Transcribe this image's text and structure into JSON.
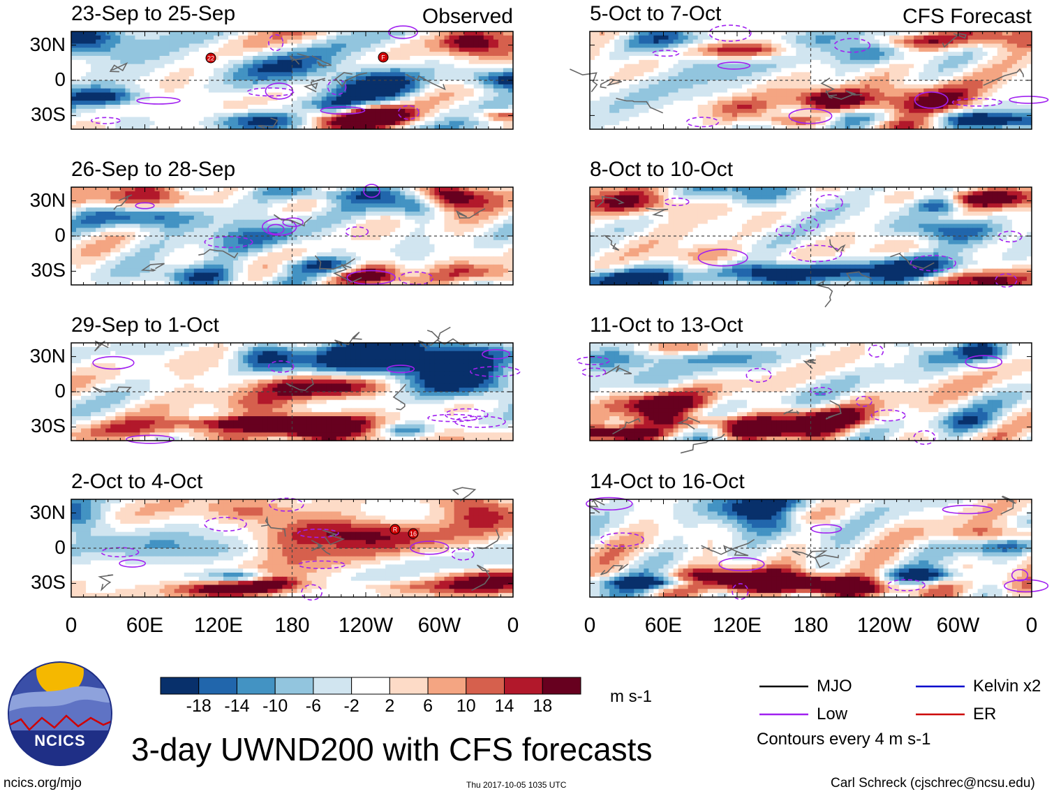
{
  "header": {
    "observed_label": "Observed",
    "forecast_label": "CFS Forecast"
  },
  "panels": [
    {
      "column": "observed",
      "title": "23-Sep to 25-Sep"
    },
    {
      "column": "observed",
      "title": "26-Sep to 28-Sep"
    },
    {
      "column": "observed",
      "title": "29-Sep to 1-Oct"
    },
    {
      "column": "observed",
      "title": "2-Oct to 4-Oct"
    },
    {
      "column": "forecast",
      "title": "5-Oct to 7-Oct"
    },
    {
      "column": "forecast",
      "title": "8-Oct to 10-Oct"
    },
    {
      "column": "forecast",
      "title": "11-Oct to 13-Oct"
    },
    {
      "column": "forecast",
      "title": "14-Oct to 16-Oct"
    }
  ],
  "axes": {
    "lat_labels": [
      "30N",
      "0",
      "30S"
    ],
    "lon_labels": [
      "0",
      "60E",
      "120E",
      "180",
      "120W",
      "60W",
      "0"
    ]
  },
  "colorbar": {
    "colors": [
      "#08306b",
      "#2166ac",
      "#4393c3",
      "#92c5de",
      "#d1e5f0",
      "#ffffff",
      "#fddbc7",
      "#f4a582",
      "#d6604d",
      "#b2182b",
      "#67001f"
    ],
    "tick_labels": [
      "-18",
      "-14",
      "-10",
      "-6",
      "-2",
      "2",
      "6",
      "10",
      "14",
      "18"
    ],
    "units": "m s-1"
  },
  "legend": {
    "items": [
      {
        "label": "MJO",
        "color": "#000000"
      },
      {
        "label": "Kelvin x2",
        "color": "#0000cc"
      },
      {
        "label": "Low",
        "color": "#a020f0"
      },
      {
        "label": "ER",
        "color": "#cc0000"
      }
    ],
    "contour_note": "Contours every 4 m s-1"
  },
  "logo": {
    "text": "NCICS"
  },
  "footer": {
    "title": "3-day UWND200 with CFS forecasts",
    "left": "ncics.org/mjo",
    "center": "Thu 2017-10-05 1035 UTC",
    "right": "Carl Schreck (cjschrec@ncsu.edu)"
  },
  "storm_markers": [
    {
      "panel": 0,
      "label": "22"
    },
    {
      "panel": 0,
      "label": "F"
    },
    {
      "panel": 3,
      "label": "R"
    },
    {
      "panel": 3,
      "label": "16"
    }
  ],
  "chart_data": {
    "type": "heatmap",
    "variable": "200-hPa zonal wind anomaly (3-day mean)",
    "title": "3-day UWND200 with CFS forecasts",
    "units": "m s-1",
    "x": [
      "0",
      "60E",
      "120E",
      "180",
      "120W",
      "60W",
      "0"
    ],
    "y": [
      "30N",
      "0",
      "30S"
    ],
    "color_levels": [
      -18,
      -14,
      -10,
      -6,
      -2,
      2,
      6,
      10,
      14,
      18
    ],
    "contour_interval": 4,
    "panels": [
      {
        "title": "23-Sep to 25-Sep",
        "source": "Observed"
      },
      {
        "title": "26-Sep to 28-Sep",
        "source": "Observed"
      },
      {
        "title": "29-Sep to 1-Oct",
        "source": "Observed"
      },
      {
        "title": "2-Oct to 4-Oct",
        "source": "Observed"
      },
      {
        "title": "5-Oct to 7-Oct",
        "source": "CFS Forecast"
      },
      {
        "title": "8-Oct to 10-Oct",
        "source": "CFS Forecast"
      },
      {
        "title": "11-Oct to 13-Oct",
        "source": "CFS Forecast"
      },
      {
        "title": "14-Oct to 16-Oct",
        "source": "CFS Forecast"
      }
    ]
  }
}
